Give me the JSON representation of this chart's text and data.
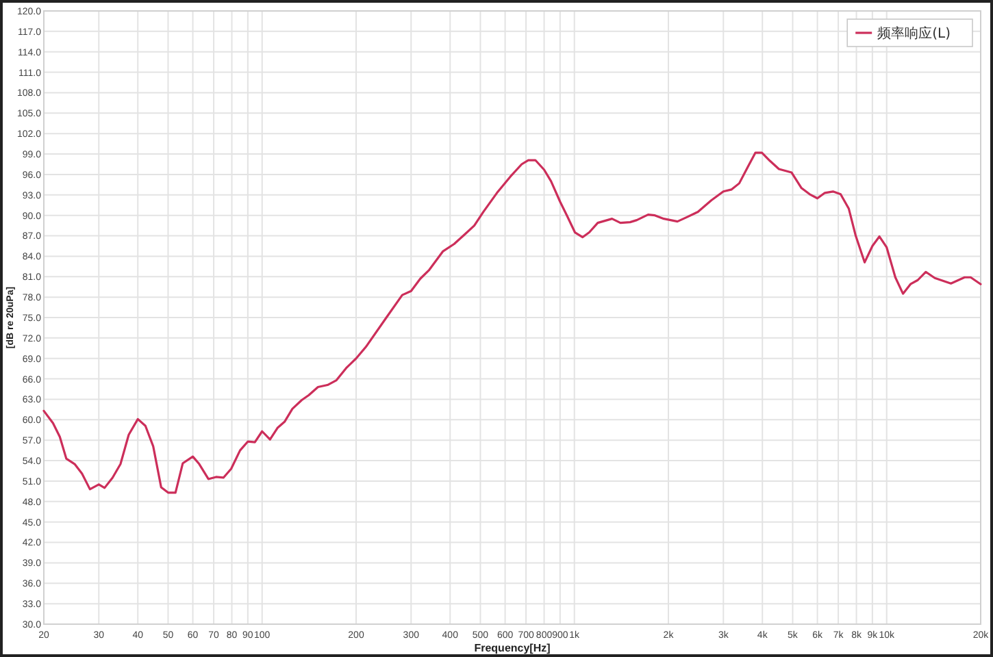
{
  "chart_data": {
    "type": "line",
    "xlabel": "Frequency[Hz]",
    "ylabel": "[dB re 20uPa]",
    "log": "x",
    "grid": true,
    "legend": "top right",
    "xlim": [
      20,
      20000
    ],
    "ylim": [
      30,
      120
    ],
    "xticks": [
      20,
      30,
      40,
      50,
      60,
      70,
      80,
      90,
      100,
      200,
      300,
      400,
      500,
      600,
      700,
      800,
      900,
      {
        "value": 1000,
        "label": "1k"
      },
      {
        "value": 2000,
        "label": "2k"
      },
      {
        "value": 3000,
        "label": "3k"
      },
      {
        "value": 4000,
        "label": "4k"
      },
      {
        "value": 5000,
        "label": "5k"
      },
      {
        "value": 6000,
        "label": "6k"
      },
      {
        "value": 7000,
        "label": "7k"
      },
      {
        "value": 8000,
        "label": "8k"
      },
      {
        "value": 9000,
        "label": "9k"
      },
      {
        "value": 10000,
        "label": "10k"
      },
      {
        "value": 20000,
        "label": "20k"
      }
    ],
    "yticks": [
      {
        "value": 30,
        "label": "30.0"
      },
      {
        "value": 33,
        "label": "33.0"
      },
      {
        "value": 36,
        "label": "36.0"
      },
      {
        "value": 39,
        "label": "39.0"
      },
      {
        "value": 42,
        "label": "42.0"
      },
      {
        "value": 45,
        "label": "45.0"
      },
      {
        "value": 48,
        "label": "48.0"
      },
      {
        "value": 51,
        "label": "51.0"
      },
      {
        "value": 54,
        "label": "54.0"
      },
      {
        "value": 57,
        "label": "57.0"
      },
      {
        "value": 60,
        "label": "60.0"
      },
      {
        "value": 63,
        "label": "63.0"
      },
      {
        "value": 66,
        "label": "66.0"
      },
      {
        "value": 69,
        "label": "69.0"
      },
      {
        "value": 72,
        "label": "72.0"
      },
      {
        "value": 75,
        "label": "75.0"
      },
      {
        "value": 78,
        "label": "78.0"
      },
      {
        "value": 81,
        "label": "81.0"
      },
      {
        "value": 84,
        "label": "84.0"
      },
      {
        "value": 87,
        "label": "87.0"
      },
      {
        "value": 90,
        "label": "90.0"
      },
      {
        "value": 93,
        "label": "93.0"
      },
      {
        "value": 96,
        "label": "96.0"
      },
      {
        "value": 99,
        "label": "99.0"
      },
      {
        "value": 102,
        "label": "102.0"
      },
      {
        "value": 105,
        "label": "105.0"
      },
      {
        "value": 108,
        "label": "108.0"
      },
      {
        "value": 111,
        "label": "111.0"
      },
      {
        "value": 114,
        "label": "114.0"
      },
      {
        "value": 117,
        "label": "117.0"
      },
      {
        "value": 120,
        "label": "120.0"
      }
    ],
    "series": [
      {
        "name": "频率响应(L)",
        "color": "#cc2e5a",
        "x": [
          20,
          21.4,
          22.5,
          23.6,
          25.1,
          26.5,
          28.1,
          30,
          31.3,
          33.2,
          35.2,
          37.4,
          40,
          42.3,
          44.8,
          47.5,
          50,
          52.8,
          55.7,
          60,
          62.9,
          67.3,
          71.2,
          75.2,
          79.6,
          85,
          90,
          94.8,
          100,
          106,
          112,
          118,
          125,
          134,
          141,
          151,
          162,
          173,
          186,
          200,
          215,
          250,
          281,
          300,
          321,
          343,
          379,
          412,
          448,
          478,
          511,
          565,
          624,
          678,
          712,
          750,
          800,
          842,
          900,
          946,
          1004,
          1063,
          1116,
          1188,
          1320,
          1404,
          1508,
          1584,
          1722,
          1810,
          1934,
          2138,
          2284,
          2484,
          2744,
          3000,
          3188,
          3372,
          3582,
          3800,
          3984,
          4228,
          4518,
          4958,
          5336,
          5668,
          6000,
          6340,
          6732,
          7120,
          7560,
          7960,
          8500,
          9000,
          9480,
          10000,
          10660,
          11280,
          11920,
          12580,
          13340,
          14260,
          16060,
          17760,
          18580,
          20000
        ],
        "values": [
          61.3,
          59.5,
          57.5,
          54.3,
          53.5,
          52.1,
          49.8,
          50.5,
          50.0,
          51.5,
          53.5,
          57.8,
          60.1,
          59.1,
          56.1,
          50.1,
          49.3,
          49.3,
          53.6,
          54.6,
          53.5,
          51.3,
          51.6,
          51.5,
          52.8,
          55.5,
          56.8,
          56.7,
          58.3,
          57.1,
          58.8,
          59.7,
          61.6,
          62.9,
          63.6,
          64.8,
          65.1,
          65.8,
          67.6,
          69.0,
          70.7,
          75.0,
          78.3,
          78.9,
          80.7,
          82.0,
          84.7,
          85.8,
          87.3,
          88.5,
          90.5,
          93.3,
          95.7,
          97.5,
          98.1,
          98.1,
          96.7,
          95.0,
          92.0,
          90.0,
          87.5,
          86.8,
          87.5,
          88.9,
          89.5,
          88.9,
          89.0,
          89.3,
          90.1,
          90.0,
          89.5,
          89.1,
          89.7,
          90.5,
          92.2,
          93.5,
          93.8,
          94.7,
          97.0,
          99.2,
          99.2,
          98.0,
          96.8,
          96.3,
          94.0,
          93.1,
          92.5,
          93.3,
          93.5,
          93.1,
          91.0,
          87.0,
          83.1,
          85.5,
          86.9,
          85.3,
          80.9,
          78.5,
          79.9,
          80.5,
          81.7,
          80.8,
          80.0,
          80.9,
          80.9,
          79.9
        ]
      }
    ]
  }
}
